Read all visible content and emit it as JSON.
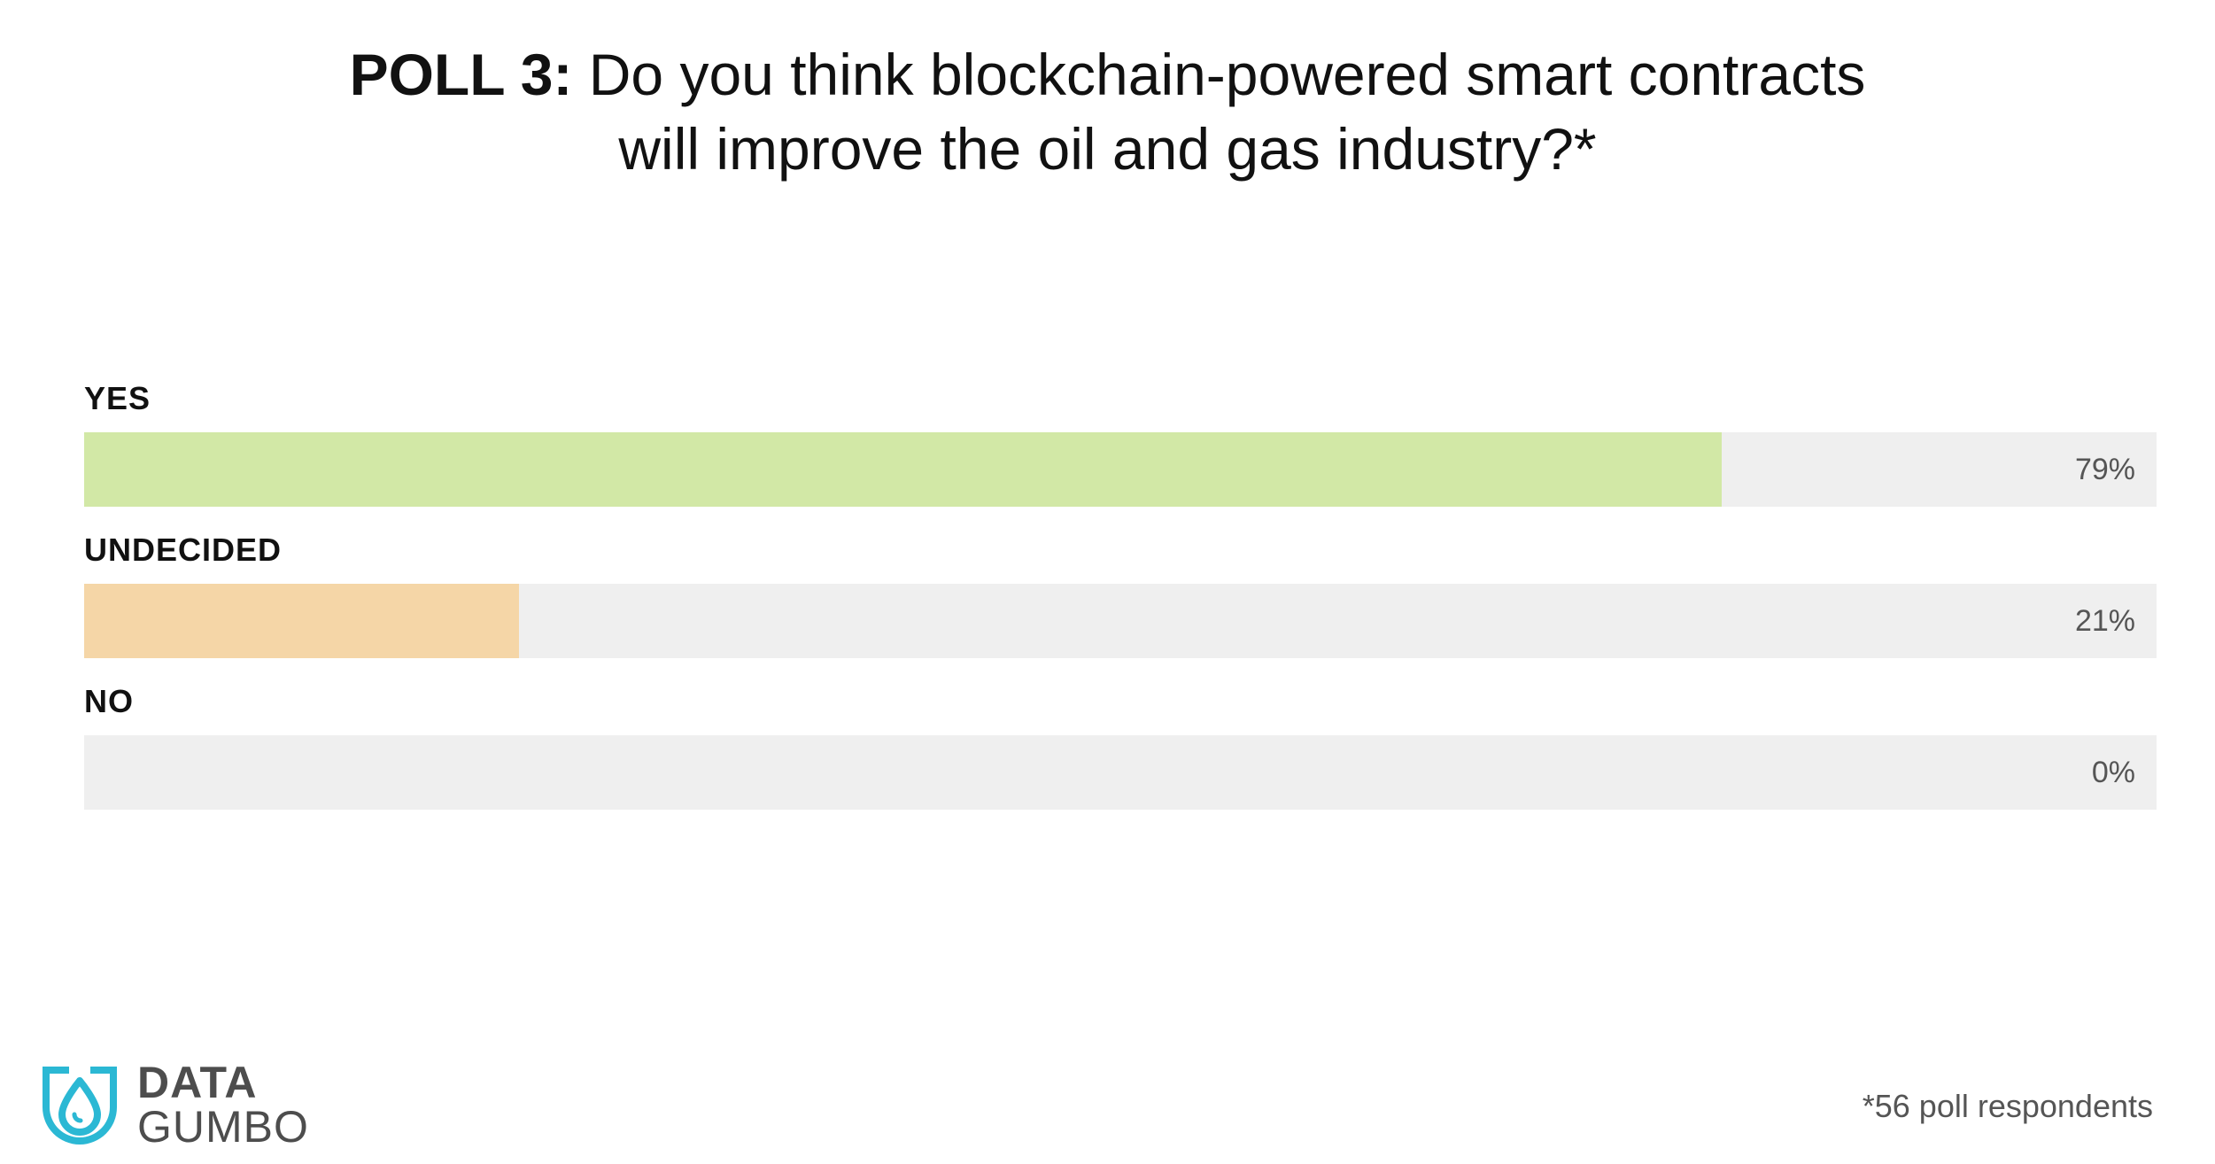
{
  "title": {
    "prefix": "POLL 3:",
    "line1": "Do you think blockchain-powered smart contracts",
    "line2": "will improve the oil and gas industry?*"
  },
  "chart_data": {
    "type": "bar",
    "orientation": "horizontal",
    "categories": [
      "YES",
      "UNDECIDED",
      "NO"
    ],
    "values": [
      79,
      21,
      0
    ],
    "value_labels": [
      "79%",
      "21%",
      "0%"
    ],
    "unit": "%",
    "xlim": [
      0,
      100
    ],
    "colors": [
      "#d2e8a6",
      "#f5d6a7",
      "#d9d9d9"
    ],
    "track_color": "#efefef",
    "grid": false,
    "legend": "none"
  },
  "footnote": "*56 poll respondents",
  "logo": {
    "word1": "DATA",
    "word2": "GUMBO",
    "icon": "drop-icon",
    "color": "#2bb8d4"
  }
}
